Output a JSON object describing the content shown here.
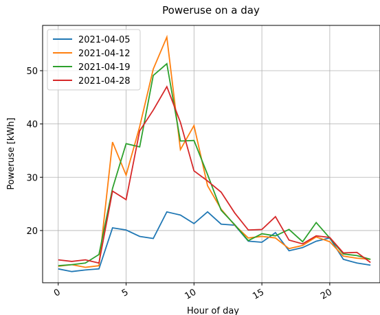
{
  "chart_data": {
    "type": "line",
    "title": "Poweruse on a day",
    "x_label": "Hour of day",
    "y_label": "Poweruse [kWh]",
    "x": [
      0,
      1,
      2,
      3,
      4,
      5,
      6,
      7,
      8,
      9,
      10,
      11,
      12,
      13,
      14,
      15,
      16,
      17,
      18,
      19,
      20,
      21,
      22,
      23
    ],
    "series": [
      {
        "name": "2021-04-05",
        "color": "#1f77b4",
        "values": [
          12.8,
          12.3,
          12.6,
          12.8,
          20.5,
          20.1,
          18.9,
          18.5,
          23.5,
          22.9,
          21.3,
          23.5,
          21.2,
          21.0,
          18.0,
          17.8,
          19.6,
          16.2,
          16.8,
          18.0,
          18.6,
          14.6,
          13.9,
          13.5
        ]
      },
      {
        "name": "2021-04-12",
        "color": "#ff7f0e",
        "values": [
          13.3,
          13.6,
          13.1,
          13.4,
          36.6,
          30.4,
          39.5,
          50.3,
          56.3,
          35.2,
          39.7,
          28.4,
          24.0,
          21.0,
          18.6,
          18.9,
          18.6,
          16.6,
          17.2,
          18.8,
          17.9,
          15.2,
          14.8,
          14.6
        ]
      },
      {
        "name": "2021-04-19",
        "color": "#2ca02c",
        "values": [
          13.4,
          13.6,
          13.9,
          15.5,
          27.9,
          36.3,
          35.7,
          49.1,
          51.3,
          36.8,
          36.9,
          30.5,
          23.8,
          21.1,
          18.1,
          19.4,
          19.0,
          20.2,
          17.9,
          21.5,
          18.6,
          15.6,
          15.3,
          14.6
        ]
      },
      {
        "name": "2021-04-28",
        "color": "#d62728",
        "values": [
          14.5,
          14.2,
          14.5,
          13.9,
          27.4,
          25.8,
          38.7,
          42.6,
          47.0,
          40.3,
          31.2,
          29.3,
          27.2,
          23.3,
          20.1,
          20.2,
          22.6,
          18.2,
          17.5,
          19.0,
          18.7,
          15.8,
          15.9,
          14.0
        ]
      }
    ],
    "xlim": [
      -1.15,
      23.7
    ],
    "ylim": [
      10.2,
      58.5
    ],
    "xticks": [
      0,
      5,
      10,
      15,
      20
    ],
    "yticks": [
      20,
      30,
      40,
      50
    ],
    "grid": true,
    "legend": "upper left"
  }
}
